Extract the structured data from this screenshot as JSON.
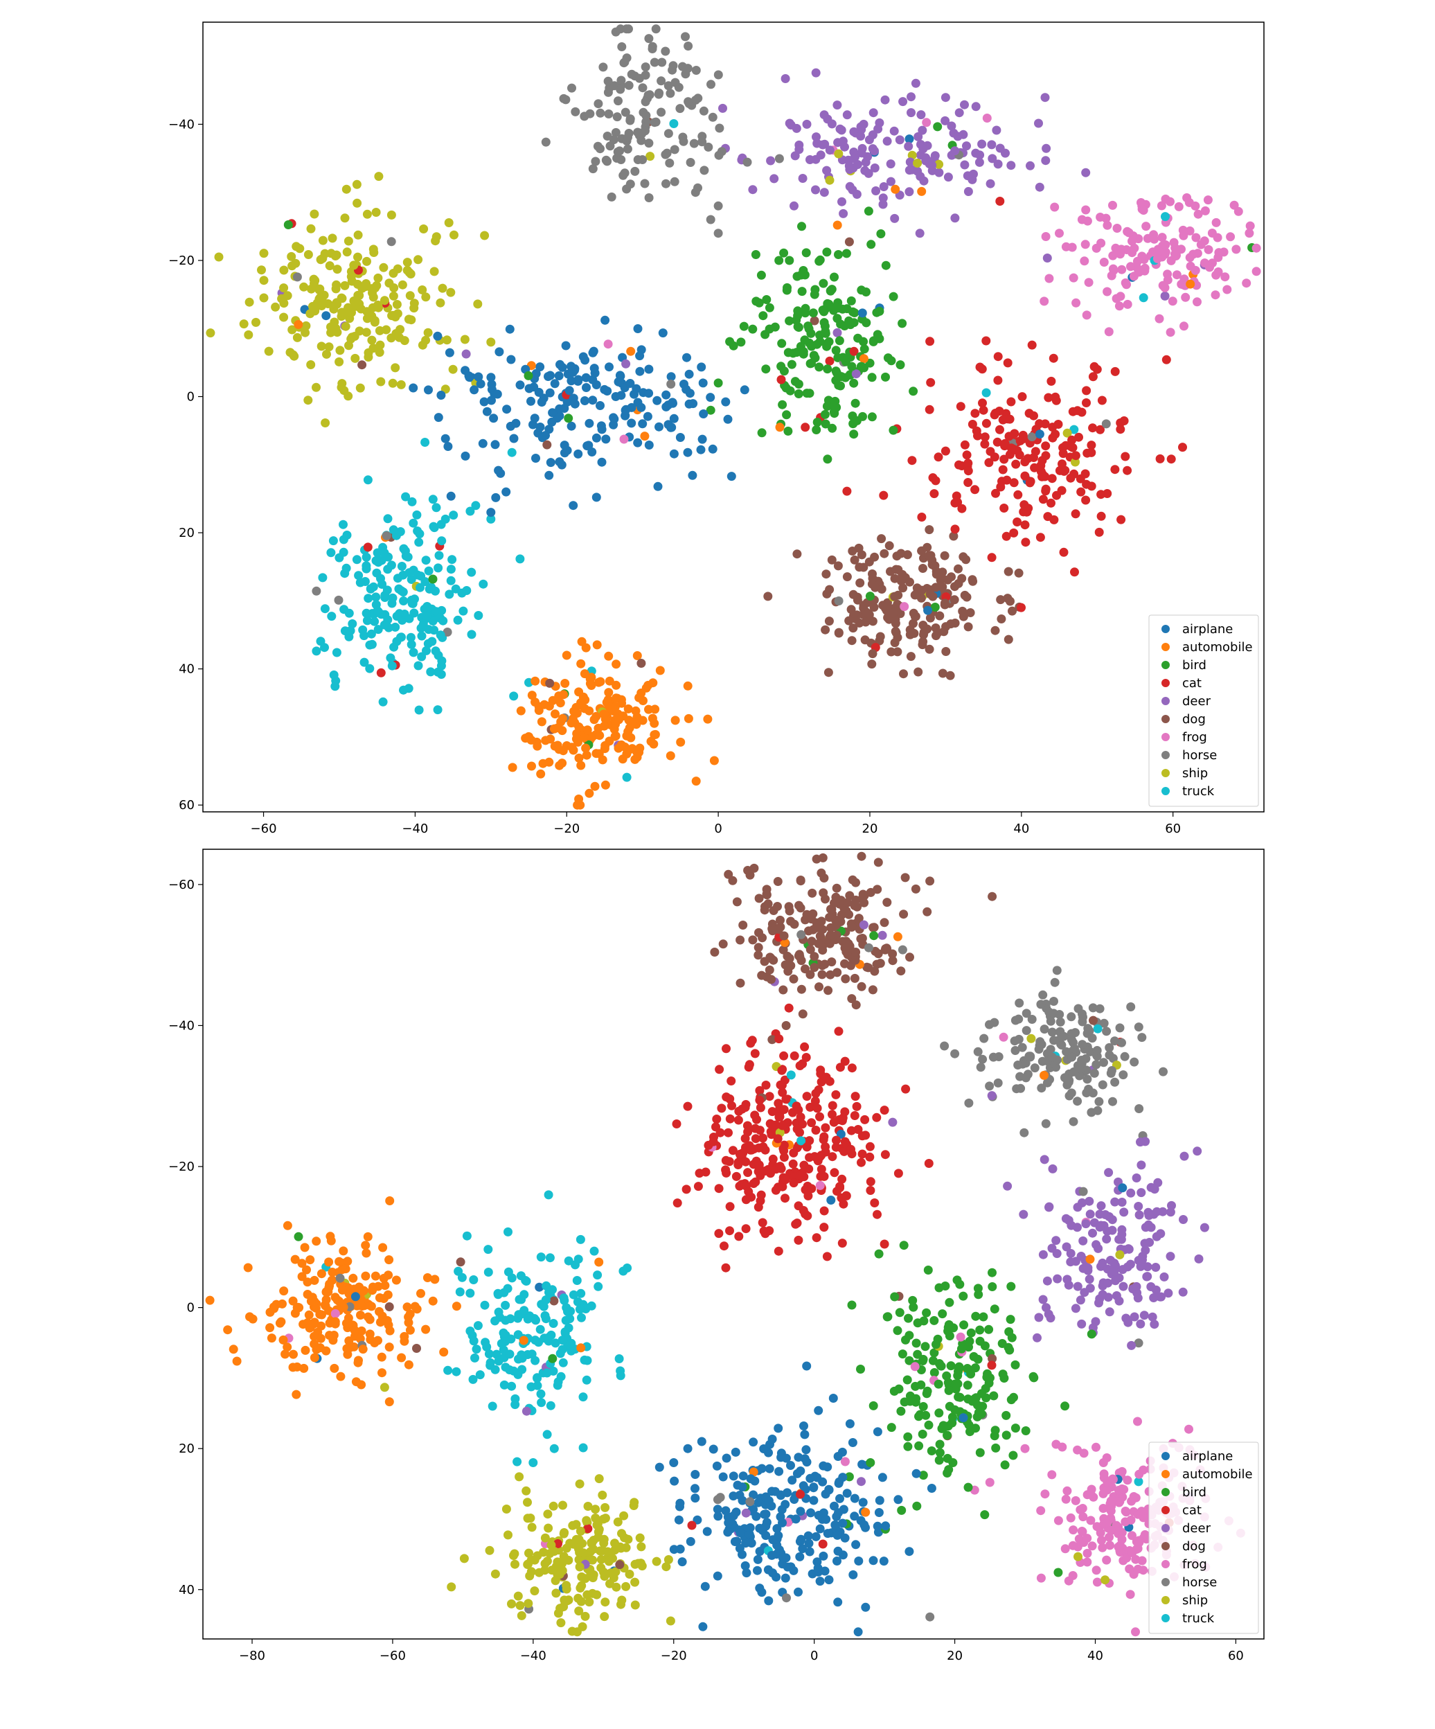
{
  "colors": {
    "airplane": "#1f77b4",
    "automobile": "#ff7f0e",
    "bird": "#2ca02c",
    "cat": "#d62728",
    "deer": "#9467bd",
    "dog": "#8c564b",
    "frog": "#e377c2",
    "horse": "#7f7f7f",
    "ship": "#bcbd22",
    "truck": "#17becf"
  },
  "chart_data": [
    {
      "type": "scatter",
      "title": "",
      "xlabel": "",
      "ylabel": "",
      "xlim": [
        -68,
        72
      ],
      "ylim": [
        -55,
        61
      ],
      "y_inverted": true,
      "grid": false,
      "legend_position": "lower-right",
      "xticks": [
        -60,
        -40,
        -20,
        0,
        20,
        40,
        60
      ],
      "yticks": [
        -40,
        -20,
        0,
        20,
        40,
        60
      ],
      "xtick_labels": [
        "−60",
        "−40",
        "−20",
        "0",
        "20",
        "40",
        "60"
      ],
      "ytick_labels": [
        "−40",
        "−20",
        "0",
        "20",
        "40",
        "60"
      ],
      "clusters": [
        {
          "name": "ship",
          "center": [
            -48,
            -14
          ],
          "spread": [
            7,
            6
          ],
          "count": 230,
          "outliers": [
            [
              -35,
              -4
            ],
            [
              -30,
              -8
            ],
            [
              -32,
              -2
            ]
          ]
        },
        {
          "name": "airplane",
          "center": [
            -18,
            1
          ],
          "spread": [
            9,
            5
          ],
          "count": 200,
          "outliers": [
            [
              -30,
              17
            ],
            [
              -28,
              14
            ],
            [
              -10,
              4
            ],
            [
              -6,
              1
            ],
            [
              -2,
              -2
            ],
            [
              -5,
              6
            ]
          ]
        },
        {
          "name": "truck",
          "center": [
            -42,
            30
          ],
          "spread": [
            5,
            7
          ],
          "count": 210,
          "outliers": [
            [
              -32,
              16
            ],
            [
              -30,
              18
            ],
            [
              -36,
              18
            ],
            [
              -25,
              42
            ],
            [
              -27,
              44
            ]
          ]
        },
        {
          "name": "automobile",
          "center": [
            -16,
            48
          ],
          "spread": [
            5,
            4.5
          ],
          "count": 190,
          "outliers": [
            [
              -20,
              38
            ],
            [
              -18,
              36
            ]
          ]
        },
        {
          "name": "horse",
          "center": [
            -9,
            -42
          ],
          "spread": [
            5,
            6
          ],
          "count": 140,
          "outliers": [
            [
              0,
              -28
            ],
            [
              -3,
              -30
            ],
            [
              0,
              -24
            ],
            [
              -1,
              -26
            ]
          ]
        },
        {
          "name": "deer",
          "center": [
            23,
            -36
          ],
          "spread": [
            9,
            4
          ],
          "count": 170,
          "outliers": [
            [
              10,
              -28
            ],
            [
              14,
              -30
            ]
          ]
        },
        {
          "name": "bird",
          "center": [
            14,
            -8
          ],
          "spread": [
            4.5,
            8
          ],
          "count": 200,
          "outliers": [
            [
              5,
              -14
            ],
            [
              3,
              -8
            ],
            [
              0,
              -2
            ],
            [
              -1,
              2
            ],
            [
              8,
              -20
            ],
            [
              11,
              -25
            ]
          ]
        },
        {
          "name": "frog",
          "center": [
            58,
            -21
          ],
          "spread": [
            6,
            4.5
          ],
          "count": 160,
          "outliers": [
            [
              45,
              -24
            ],
            [
              48,
              -26
            ],
            [
              43,
              -14
            ]
          ]
        },
        {
          "name": "cat",
          "center": [
            42,
            8
          ],
          "spread": [
            7,
            7
          ],
          "count": 200,
          "outliers": [
            [
              35,
              2
            ],
            [
              30,
              8
            ],
            [
              50,
              -4
            ]
          ]
        },
        {
          "name": "dog",
          "center": [
            25,
            30
          ],
          "spread": [
            6,
            4.5
          ],
          "count": 200,
          "outliers": [
            [
              18,
              24
            ],
            [
              15,
              24
            ],
            [
              27,
              36
            ]
          ]
        }
      ],
      "legend": [
        "airplane",
        "automobile",
        "bird",
        "cat",
        "deer",
        "dog",
        "frog",
        "horse",
        "ship",
        "truck"
      ]
    },
    {
      "type": "scatter",
      "title": "",
      "xlabel": "",
      "ylabel": "",
      "xlim": [
        -87,
        64
      ],
      "ylim": [
        -65,
        47
      ],
      "y_inverted": true,
      "grid": false,
      "legend_position": "lower-right",
      "xticks": [
        -80,
        -60,
        -40,
        -20,
        0,
        20,
        40,
        60
      ],
      "yticks": [
        -60,
        -40,
        -20,
        0,
        20,
        40
      ],
      "xtick_labels": [
        "−80",
        "−60",
        "−40",
        "−20",
        "0",
        "20",
        "40",
        "60"
      ],
      "ytick_labels": [
        "−60",
        "−40",
        "−20",
        "0",
        "20",
        "40"
      ],
      "clusters": [
        {
          "name": "automobile",
          "center": [
            -67,
            1
          ],
          "spread": [
            6,
            5
          ],
          "count": 220,
          "outliers": [
            [
              -56,
              -2
            ],
            [
              -54,
              -4
            ]
          ]
        },
        {
          "name": "truck",
          "center": [
            -40,
            3
          ],
          "spread": [
            5,
            6
          ],
          "count": 180,
          "outliers": [
            [
              -38,
              18
            ],
            [
              -37,
              20
            ],
            [
              -40,
              22
            ]
          ]
        },
        {
          "name": "ship",
          "center": [
            -34,
            36
          ],
          "spread": [
            5,
            4
          ],
          "count": 190,
          "outliers": [
            [
              -41,
              26
            ],
            [
              -42,
              24
            ],
            [
              -30,
              30
            ]
          ]
        },
        {
          "name": "airplane",
          "center": [
            -5,
            29
          ],
          "spread": [
            8,
            6
          ],
          "count": 260,
          "outliers": [
            [
              -16,
              19
            ],
            [
              -18,
              20
            ],
            [
              -20,
              22
            ]
          ]
        },
        {
          "name": "bird",
          "center": [
            20,
            10
          ],
          "spread": [
            5,
            7
          ],
          "count": 200,
          "outliers": [
            [
              11,
              17
            ],
            [
              8,
              22
            ],
            [
              5,
              24
            ],
            [
              14,
              -1
            ],
            [
              28,
              -3
            ]
          ]
        },
        {
          "name": "deer",
          "center": [
            43,
            -8
          ],
          "spread": [
            5,
            6
          ],
          "count": 170,
          "outliers": [
            [
              36,
              -4
            ],
            [
              33,
              0
            ]
          ]
        },
        {
          "name": "frog",
          "center": [
            44,
            30
          ],
          "spread": [
            6,
            5
          ],
          "count": 200,
          "outliers": [
            [
              30,
              20
            ],
            [
              36,
              26
            ]
          ]
        },
        {
          "name": "dog",
          "center": [
            1,
            -53
          ],
          "spread": [
            6,
            4.5
          ],
          "count": 220,
          "outliers": [
            [
              -6,
              -38
            ],
            [
              -4,
              -40
            ]
          ]
        },
        {
          "name": "cat",
          "center": [
            -4,
            -24
          ],
          "spread": [
            6,
            7
          ],
          "count": 300,
          "outliers": [
            [
              10,
              -28
            ],
            [
              13,
              -31
            ],
            [
              10,
              -9
            ]
          ]
        },
        {
          "name": "horse",
          "center": [
            35,
            -36
          ],
          "spread": [
            5,
            4
          ],
          "count": 170,
          "outliers": [
            [
              20,
              -36
            ],
            [
              22,
              -29
            ]
          ]
        }
      ],
      "legend": [
        "airplane",
        "automobile",
        "bird",
        "cat",
        "deer",
        "dog",
        "frog",
        "horse",
        "ship",
        "truck"
      ]
    }
  ]
}
